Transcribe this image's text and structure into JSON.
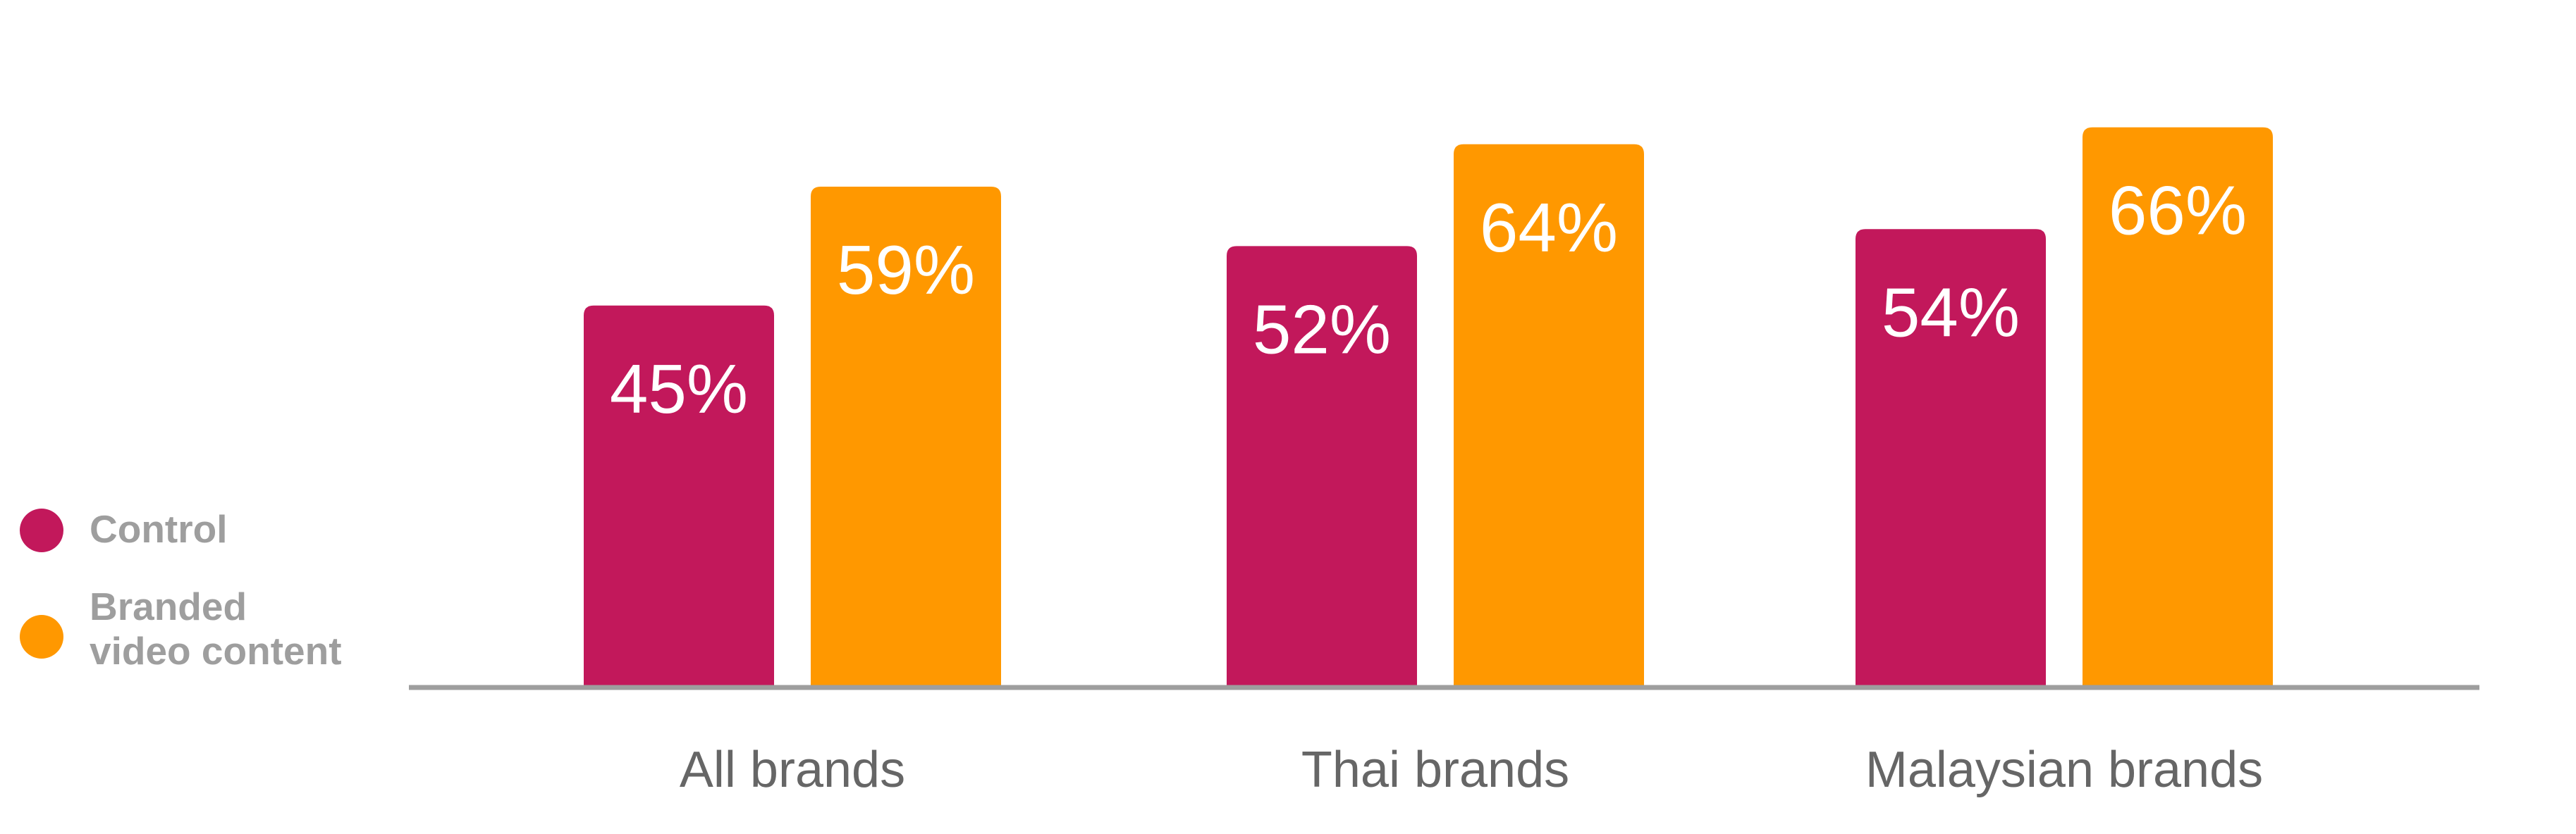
{
  "chart_data": {
    "type": "bar",
    "categories": [
      "All brands",
      "Thai brands",
      "Malaysian brands"
    ],
    "series": [
      {
        "name": "Control",
        "color": "#c2185b",
        "values": [
          45,
          52,
          54
        ],
        "labels": [
          "45%",
          "52%",
          "54%"
        ]
      },
      {
        "name": "Branded\nvideo content",
        "color": "#ff9800",
        "values": [
          59,
          64,
          66
        ],
        "labels": [
          "59%",
          "64%",
          "66%"
        ]
      }
    ],
    "ylim": [
      0,
      80
    ],
    "grid": false,
    "legend_position": "left"
  },
  "colors": {
    "control": "#c2185b",
    "branded": "#ff9800",
    "axis": "#9e9e9e"
  }
}
